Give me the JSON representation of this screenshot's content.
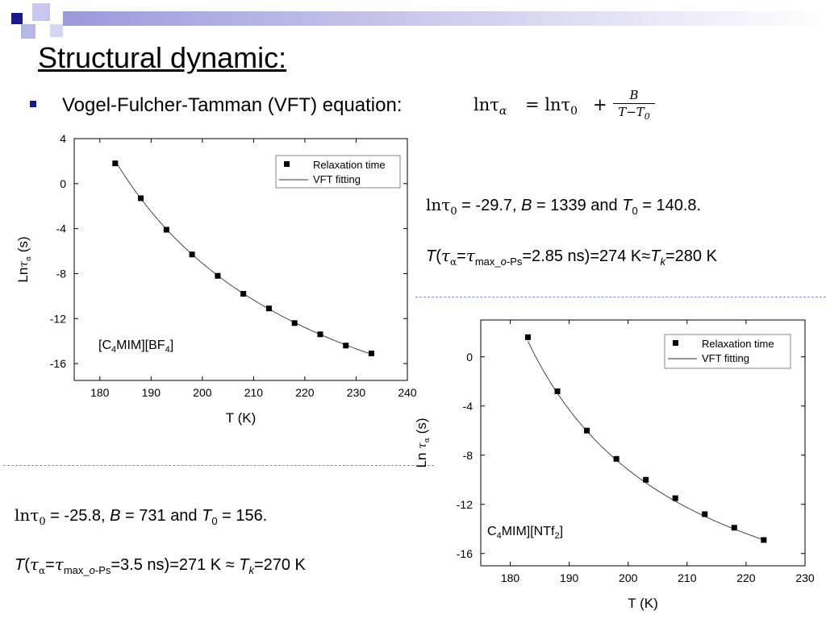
{
  "slide": {
    "title": "Structural dynamic:",
    "bullet": "Vogel-Fulcher-Tamman (VFT) equation:",
    "equation": {
      "lhs": "lnτ",
      "lhs_sub": "α",
      "mid": "= lnτ",
      "mid_sub": "0",
      "plus": "+",
      "num": "B",
      "den": "T−T",
      "den_sub": "0"
    }
  },
  "params_top": {
    "line1": {
      "ln": "lnτ",
      "sub0": "0",
      "eq": " = -29.7, ",
      "B": "B",
      "Beq": " = 1339 and ",
      "T": "T",
      "Tsub": "0",
      "Teq": " = 140.8."
    },
    "line2": {
      "T": "T",
      "open": "(",
      "tau": "τ",
      "alpha": "α",
      "eq": "=",
      "tau2": "τ",
      "maxsub": "max_",
      "osub": "o",
      "pssub": "-Ps",
      "rest": "=2.85 ns)=274 K≈",
      "Tk": "T",
      "k": "k",
      "end": "=280 K"
    }
  },
  "params_bottom": {
    "line1": {
      "ln": "lnτ",
      "sub0": "0",
      "eq": " = -25.8, ",
      "B": "B",
      "Beq": " = 731 and ",
      "T": "T",
      "Tsub": "0",
      "Teq": " = 156."
    },
    "line2": {
      "T": "T",
      "open": "(",
      "tau": "τ",
      "alpha": "α",
      "eq": "=",
      "tau2": "τ",
      "maxsub": "max_",
      "osub": "o",
      "pssub": "-Ps",
      "rest": "=3.5 ns)=271 K ≈ ",
      "Tk": "T",
      "k": "k",
      "end": "=270 K"
    }
  },
  "colors": {
    "bullet": "#1a1a8c",
    "deco_dark": "#1a1a8c",
    "deco_light": "#b8b8e8",
    "separator": "#8a8ad8"
  },
  "chart_data": [
    {
      "type": "scatter",
      "xlabel": "T (K)",
      "ylabel_main": "Ln",
      "ylabel_tau": "τ",
      "ylabel_alpha": "α",
      "ylabel_unit": " (s)",
      "annotation": {
        "a": "[C",
        "b": "4",
        "c": "MIM][BF",
        "d": "4",
        "e": "]"
      },
      "xlim": [
        175,
        240
      ],
      "ylim": [
        -17.5,
        4
      ],
      "xticks": [
        180,
        190,
        200,
        210,
        220,
        230,
        240
      ],
      "yticks": [
        4,
        0,
        -4,
        -8,
        -12,
        -16
      ],
      "legend_position": "top-right",
      "series": [
        {
          "name": "Relaxation time",
          "marker": "square",
          "x": [
            183,
            188,
            193,
            198,
            203,
            208,
            213,
            218,
            223,
            228,
            233
          ],
          "y": [
            1.8,
            -1.3,
            -4.1,
            -6.3,
            -8.2,
            -9.8,
            -11.1,
            -12.4,
            -13.4,
            -14.4,
            -15.1
          ]
        },
        {
          "name": "VFT fitting",
          "style": "line",
          "lnTau0": -29.7,
          "B": 1339,
          "T0": 140.8
        }
      ]
    },
    {
      "type": "scatter",
      "xlabel": "T (K)",
      "ylabel_main": "Ln ",
      "ylabel_tau": "τ",
      "ylabel_alpha": "α",
      "ylabel_unit": " (s)",
      "annotation": {
        "a": "C",
        "b": "4",
        "c": "MIM][NTf",
        "d": "2",
        "e": "]"
      },
      "xlim": [
        175,
        230
      ],
      "ylim": [
        -17,
        3
      ],
      "xticks": [
        180,
        190,
        200,
        210,
        220,
        230
      ],
      "yticks": [
        0,
        -4,
        -8,
        -12,
        -16
      ],
      "legend_position": "top-right",
      "series": [
        {
          "name": "Relaxation time",
          "marker": "square",
          "x": [
            183,
            188,
            193,
            198,
            203,
            208,
            213,
            218,
            223
          ],
          "y": [
            1.6,
            -2.8,
            -6.0,
            -8.3,
            -10.0,
            -11.5,
            -12.8,
            -13.9,
            -14.9
          ]
        },
        {
          "name": "VFT fitting",
          "style": "line",
          "lnTau0": -25.8,
          "B": 731,
          "T0": 156
        }
      ]
    }
  ]
}
